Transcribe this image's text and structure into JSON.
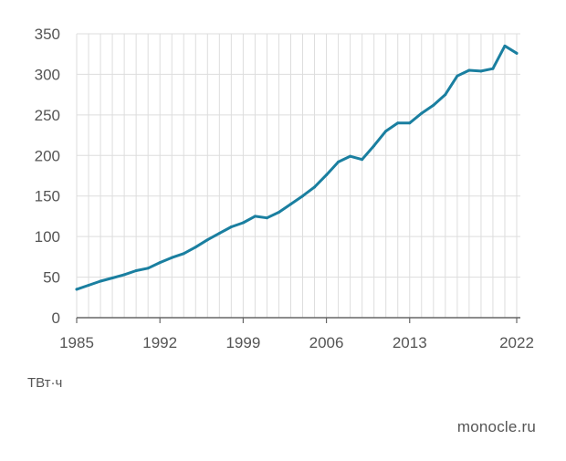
{
  "chart_data": {
    "type": "line",
    "title": "",
    "xlabel": "",
    "ylabel": "",
    "unit_label": "ТВт·ч",
    "source": "monocle.ru",
    "xlim": [
      1985,
      2022
    ],
    "ylim": [
      0,
      350
    ],
    "x_ticks": [
      1985,
      1992,
      1999,
      2006,
      2013,
      2022
    ],
    "y_ticks": [
      0,
      50,
      100,
      150,
      200,
      250,
      300,
      350
    ],
    "grid": true,
    "series": [
      {
        "color": "#1a7fa0",
        "x": [
          1985,
          1986,
          1987,
          1988,
          1989,
          1990,
          1991,
          1992,
          1993,
          1994,
          1995,
          1996,
          1997,
          1998,
          1999,
          2000,
          2001,
          2002,
          2003,
          2004,
          2005,
          2006,
          2007,
          2008,
          2009,
          2010,
          2011,
          2012,
          2013,
          2014,
          2015,
          2016,
          2017,
          2018,
          2019,
          2020,
          2021,
          2022
        ],
        "values": [
          35,
          40,
          45,
          49,
          53,
          58,
          61,
          68,
          74,
          79,
          87,
          96,
          104,
          112,
          117,
          125,
          123,
          130,
          140,
          150,
          161,
          176,
          192,
          199,
          195,
          212,
          230,
          240,
          240,
          252,
          262,
          275,
          298,
          305,
          304,
          307,
          335,
          326
        ]
      }
    ]
  }
}
